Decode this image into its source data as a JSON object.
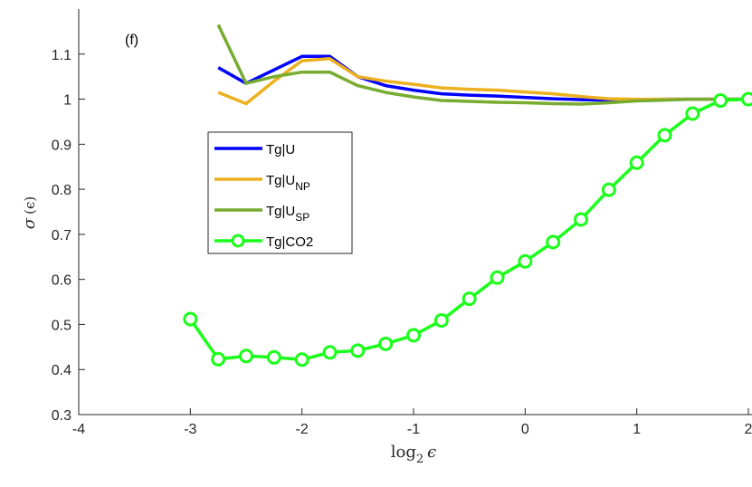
{
  "chart_data": {
    "type": "line",
    "panel_label": "(f)",
    "xlabel": {
      "base": "log",
      "sub": "2",
      "sym": "ϵ"
    },
    "ylabel": {
      "sym": "σ",
      "arg": "(ϵ)"
    },
    "xlim": [
      -4,
      2
    ],
    "ylim": [
      0.3,
      1.2
    ],
    "xticks": [
      -4,
      -3,
      -2,
      -1,
      0,
      1,
      2
    ],
    "xtick_labels": [
      "-4",
      "-3",
      "-2",
      "-1",
      "0",
      "1",
      "2"
    ],
    "yticks": [
      0.3,
      0.4,
      0.5,
      0.6,
      0.7,
      0.8,
      0.9,
      1.0,
      1.1
    ],
    "ytick_labels": [
      "0.3",
      "0.4",
      "0.5",
      "0.6",
      "0.7",
      "0.8",
      "0.9",
      "1",
      "1.1"
    ],
    "grid": false,
    "legend_position": "middle-left",
    "series": [
      {
        "name": "Tg|U",
        "name_main": "Tg|U",
        "name_sub": "",
        "color": "#0000ff",
        "marker": "none",
        "x": [
          -2.75,
          -2.5,
          -2.25,
          -2.0,
          -1.75,
          -1.5,
          -1.25,
          -1.0,
          -0.75,
          -0.5,
          -0.25,
          0.0,
          0.25,
          0.5,
          0.75,
          1.0,
          1.25,
          1.5,
          1.75,
          2.0
        ],
        "y": [
          1.07,
          1.035,
          1.065,
          1.095,
          1.095,
          1.05,
          1.03,
          1.02,
          1.012,
          1.009,
          1.007,
          1.004,
          1.001,
          0.999,
          0.998,
          0.999,
          1.0,
          1.0,
          1.0,
          1.0
        ]
      },
      {
        "name": "Tg|UNP",
        "name_main": "Tg|U",
        "name_sub": "NP",
        "color": "#edb120",
        "marker": "none",
        "x": [
          -2.75,
          -2.5,
          -2.25,
          -2.0,
          -1.75,
          -1.5,
          -1.25,
          -1.0,
          -0.75,
          -0.5,
          -0.25,
          0.0,
          0.25,
          0.5,
          0.75,
          1.0,
          1.25,
          1.5,
          1.75,
          2.0
        ],
        "y": [
          1.015,
          0.99,
          1.04,
          1.085,
          1.09,
          1.05,
          1.04,
          1.033,
          1.025,
          1.022,
          1.02,
          1.016,
          1.012,
          1.006,
          1.001,
          1.0,
          1.0,
          1.0,
          1.0,
          1.0
        ]
      },
      {
        "name": "Tg|USP",
        "name_main": "Tg|U",
        "name_sub": "SP",
        "color": "#77ac30",
        "marker": "none",
        "x": [
          -2.75,
          -2.5,
          -2.25,
          -2.0,
          -1.75,
          -1.5,
          -1.25,
          -1.0,
          -0.75,
          -0.5,
          -0.25,
          0.0,
          0.25,
          0.5,
          0.75,
          1.0,
          1.25,
          1.5,
          1.75,
          2.0
        ],
        "y": [
          1.165,
          1.035,
          1.05,
          1.06,
          1.06,
          1.03,
          1.015,
          1.005,
          0.997,
          0.995,
          0.993,
          0.992,
          0.99,
          0.989,
          0.992,
          0.996,
          0.998,
          1.0,
          1.0,
          1.0
        ]
      },
      {
        "name": "Tg|CO2",
        "name_main": "Tg|CO2",
        "name_sub": "",
        "color": "#1aff1a",
        "marker": "circle",
        "x": [
          -3.0,
          -2.75,
          -2.5,
          -2.25,
          -2.0,
          -1.75,
          -1.5,
          -1.25,
          -1.0,
          -0.75,
          -0.5,
          -0.25,
          0.0,
          0.25,
          0.5,
          0.75,
          1.0,
          1.25,
          1.5,
          1.75,
          2.0
        ],
        "y": [
          0.512,
          0.423,
          0.43,
          0.427,
          0.422,
          0.438,
          0.442,
          0.457,
          0.476,
          0.509,
          0.557,
          0.604,
          0.64,
          0.683,
          0.733,
          0.799,
          0.859,
          0.92,
          0.968,
          0.997,
          1.0
        ]
      }
    ]
  }
}
